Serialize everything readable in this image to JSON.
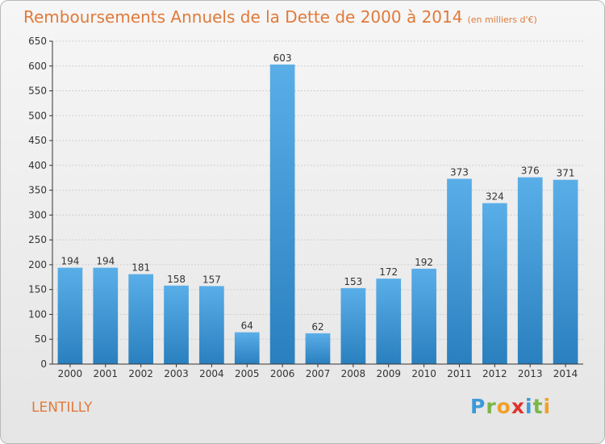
{
  "title": "Remboursements Annuels de la Dette de 2000 à 2014",
  "subtitle": "(en milliers d'€)",
  "commune": "LENTILLY",
  "logo_text": "Proxiti",
  "colors": {
    "title": "#e07a3a",
    "bar_light": "#5aaee8",
    "bar_dark": "#2a7fbe",
    "grid": "#cfcfcf",
    "axis": "#333333"
  },
  "chart_data": {
    "type": "bar",
    "title": "Remboursements Annuels de la Dette de 2000 à 2014",
    "subtitle": "(en milliers d'€)",
    "xlabel": "",
    "ylabel": "",
    "ylim": [
      0,
      650
    ],
    "yticks": [
      0,
      50,
      100,
      150,
      200,
      250,
      300,
      350,
      400,
      450,
      500,
      550,
      600,
      650
    ],
    "grid": true,
    "categories": [
      "2000",
      "2001",
      "2002",
      "2003",
      "2004",
      "2005",
      "2006",
      "2007",
      "2008",
      "2009",
      "2010",
      "2011",
      "2012",
      "2013",
      "2014"
    ],
    "values": [
      194,
      194,
      181,
      158,
      157,
      64,
      603,
      62,
      153,
      172,
      192,
      373,
      324,
      376,
      371
    ]
  }
}
